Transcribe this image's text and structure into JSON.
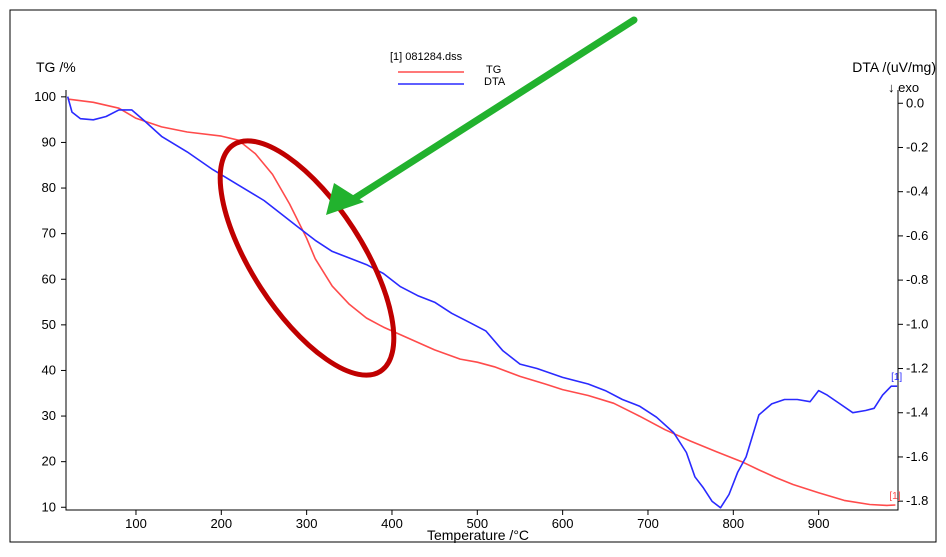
{
  "chart_data": {
    "type": "line",
    "legend": {
      "title": "[1] 081284.dss",
      "placement": "top-center",
      "entries": [
        {
          "label": "TG",
          "color": "#ff4b4b"
        },
        {
          "label": "DTA",
          "color": "#2a2aff"
        }
      ]
    },
    "xlabel": "Temperature /°C",
    "xlim": [
      18,
      993
    ],
    "xticks": [
      100,
      200,
      300,
      400,
      500,
      600,
      700,
      800,
      900
    ],
    "y_left": {
      "label": "TG /%",
      "lim": [
        9.4,
        101.5
      ],
      "ticks": [
        10,
        20,
        30,
        40,
        50,
        60,
        70,
        80,
        90,
        100
      ]
    },
    "y_right": {
      "label": "DTA /(uV/mg)",
      "sublabel": "↓ exo",
      "lim": [
        -1.84,
        0.06
      ],
      "ticks": [
        0.0,
        -0.2,
        -0.4,
        -0.6,
        -0.8,
        -1.0,
        -1.2,
        -1.4,
        -1.6,
        -1.8
      ]
    },
    "grid": false,
    "series": [
      {
        "name": "TG",
        "axis": "left",
        "color": "#ff4b4b",
        "end_label": "[1]",
        "points": [
          [
            20,
            99.5
          ],
          [
            50,
            98.8
          ],
          [
            80,
            97.5
          ],
          [
            100,
            95.3
          ],
          [
            130,
            93.4
          ],
          [
            160,
            92.3
          ],
          [
            200,
            91.4
          ],
          [
            220,
            90.5
          ],
          [
            240,
            87.5
          ],
          [
            260,
            83
          ],
          [
            280,
            76.5
          ],
          [
            300,
            69
          ],
          [
            310,
            64.5
          ],
          [
            330,
            58.5
          ],
          [
            350,
            54.5
          ],
          [
            370,
            51.5
          ],
          [
            390,
            49.5
          ],
          [
            420,
            47
          ],
          [
            450,
            44.5
          ],
          [
            480,
            42.5
          ],
          [
            500,
            41.8
          ],
          [
            520,
            40.8
          ],
          [
            550,
            38.7
          ],
          [
            580,
            37
          ],
          [
            600,
            35.8
          ],
          [
            630,
            34.5
          ],
          [
            660,
            32.8
          ],
          [
            690,
            30
          ],
          [
            720,
            27
          ],
          [
            750,
            24.5
          ],
          [
            780,
            22.2
          ],
          [
            810,
            20
          ],
          [
            830,
            18.2
          ],
          [
            850,
            16.5
          ],
          [
            870,
            15
          ],
          [
            900,
            13.2
          ],
          [
            930,
            11.5
          ],
          [
            960,
            10.6
          ],
          [
            980,
            10.4
          ],
          [
            990,
            10.5
          ]
        ]
      },
      {
        "name": "DTA",
        "axis": "right",
        "color": "#2a2aff",
        "end_label": "[1]",
        "points": [
          [
            20,
            0.03
          ],
          [
            25,
            -0.04
          ],
          [
            35,
            -0.07
          ],
          [
            50,
            -0.075
          ],
          [
            65,
            -0.06
          ],
          [
            80,
            -0.03
          ],
          [
            95,
            -0.03
          ],
          [
            110,
            -0.08
          ],
          [
            130,
            -0.15
          ],
          [
            160,
            -0.22
          ],
          [
            190,
            -0.3
          ],
          [
            220,
            -0.37
          ],
          [
            250,
            -0.44
          ],
          [
            270,
            -0.5
          ],
          [
            290,
            -0.56
          ],
          [
            310,
            -0.62
          ],
          [
            330,
            -0.67
          ],
          [
            350,
            -0.7
          ],
          [
            370,
            -0.73
          ],
          [
            390,
            -0.77
          ],
          [
            410,
            -0.83
          ],
          [
            430,
            -0.87
          ],
          [
            450,
            -0.9
          ],
          [
            470,
            -0.95
          ],
          [
            490,
            -0.99
          ],
          [
            510,
            -1.03
          ],
          [
            530,
            -1.12
          ],
          [
            550,
            -1.18
          ],
          [
            570,
            -1.2
          ],
          [
            600,
            -1.24
          ],
          [
            630,
            -1.27
          ],
          [
            650,
            -1.3
          ],
          [
            670,
            -1.34
          ],
          [
            690,
            -1.37
          ],
          [
            710,
            -1.42
          ],
          [
            730,
            -1.49
          ],
          [
            745,
            -1.58
          ],
          [
            755,
            -1.69
          ],
          [
            765,
            -1.74
          ],
          [
            775,
            -1.8
          ],
          [
            785,
            -1.83
          ],
          [
            795,
            -1.77
          ],
          [
            805,
            -1.67
          ],
          [
            815,
            -1.6
          ],
          [
            830,
            -1.41
          ],
          [
            845,
            -1.36
          ],
          [
            860,
            -1.34
          ],
          [
            875,
            -1.34
          ],
          [
            890,
            -1.35
          ],
          [
            900,
            -1.3
          ],
          [
            910,
            -1.32
          ],
          [
            925,
            -1.36
          ],
          [
            940,
            -1.4
          ],
          [
            955,
            -1.39
          ],
          [
            965,
            -1.38
          ],
          [
            975,
            -1.32
          ],
          [
            985,
            -1.28
          ],
          [
            992,
            -1.28
          ]
        ]
      }
    ]
  },
  "annotations": [
    {
      "type": "ellipse",
      "color": "#c00000",
      "label": ""
    },
    {
      "type": "arrow",
      "color": "#22b22e",
      "label": ""
    }
  ]
}
